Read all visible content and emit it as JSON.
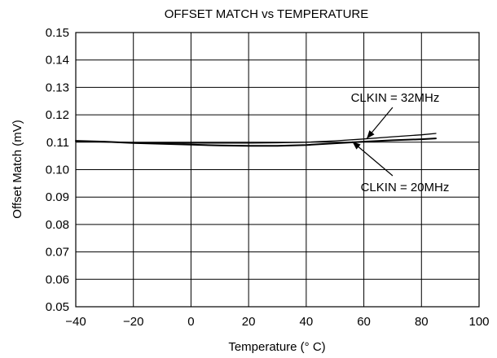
{
  "chart_data": {
    "type": "line",
    "title": "OFFSET MATCH vs TEMPERATURE",
    "xlabel": "Temperature (° C)",
    "ylabel": "Offset Match (mV)",
    "xlim": [
      -40,
      100
    ],
    "ylim": [
      0.05,
      0.15
    ],
    "x_ticks": [
      -40,
      -20,
      0,
      20,
      40,
      60,
      80,
      100
    ],
    "x_tick_labels": [
      "−40",
      "−20",
      "0",
      "20",
      "40",
      "60",
      "80",
      "100"
    ],
    "y_ticks": [
      0.05,
      0.06,
      0.07,
      0.08,
      0.09,
      0.1,
      0.11,
      0.12,
      0.13,
      0.14,
      0.15
    ],
    "y_tick_labels": [
      "0.05",
      "0.06",
      "0.07",
      "0.08",
      "0.09",
      "0.10",
      "0.11",
      "0.12",
      "0.13",
      "0.14",
      "0.15"
    ],
    "grid": true,
    "series": [
      {
        "name": "CLKIN = 32MHz",
        "x": [
          -40,
          -30,
          -20,
          -10,
          0,
          10,
          20,
          30,
          40,
          50,
          60,
          70,
          80,
          85
        ],
        "y": [
          0.1102,
          0.1101,
          0.1099,
          0.1098,
          0.1097,
          0.1097,
          0.1097,
          0.1098,
          0.11,
          0.1105,
          0.1112,
          0.112,
          0.1127,
          0.1132
        ]
      },
      {
        "name": "CLKIN = 20MHz",
        "x": [
          -40,
          -30,
          -20,
          -10,
          0,
          10,
          20,
          30,
          40,
          50,
          60,
          70,
          80,
          85
        ],
        "y": [
          0.1105,
          0.1102,
          0.1097,
          0.1094,
          0.1091,
          0.1088,
          0.1087,
          0.1087,
          0.109,
          0.1096,
          0.1102,
          0.1107,
          0.1111,
          0.1114
        ]
      }
    ],
    "annotations": [
      {
        "text": "CLKIN = 32MHz",
        "series": 0,
        "arrow_to": [
          61,
          0.1113
        ]
      },
      {
        "text": "CLKIN = 20MHz",
        "series": 1,
        "arrow_to": [
          56,
          0.1102
        ]
      }
    ]
  }
}
